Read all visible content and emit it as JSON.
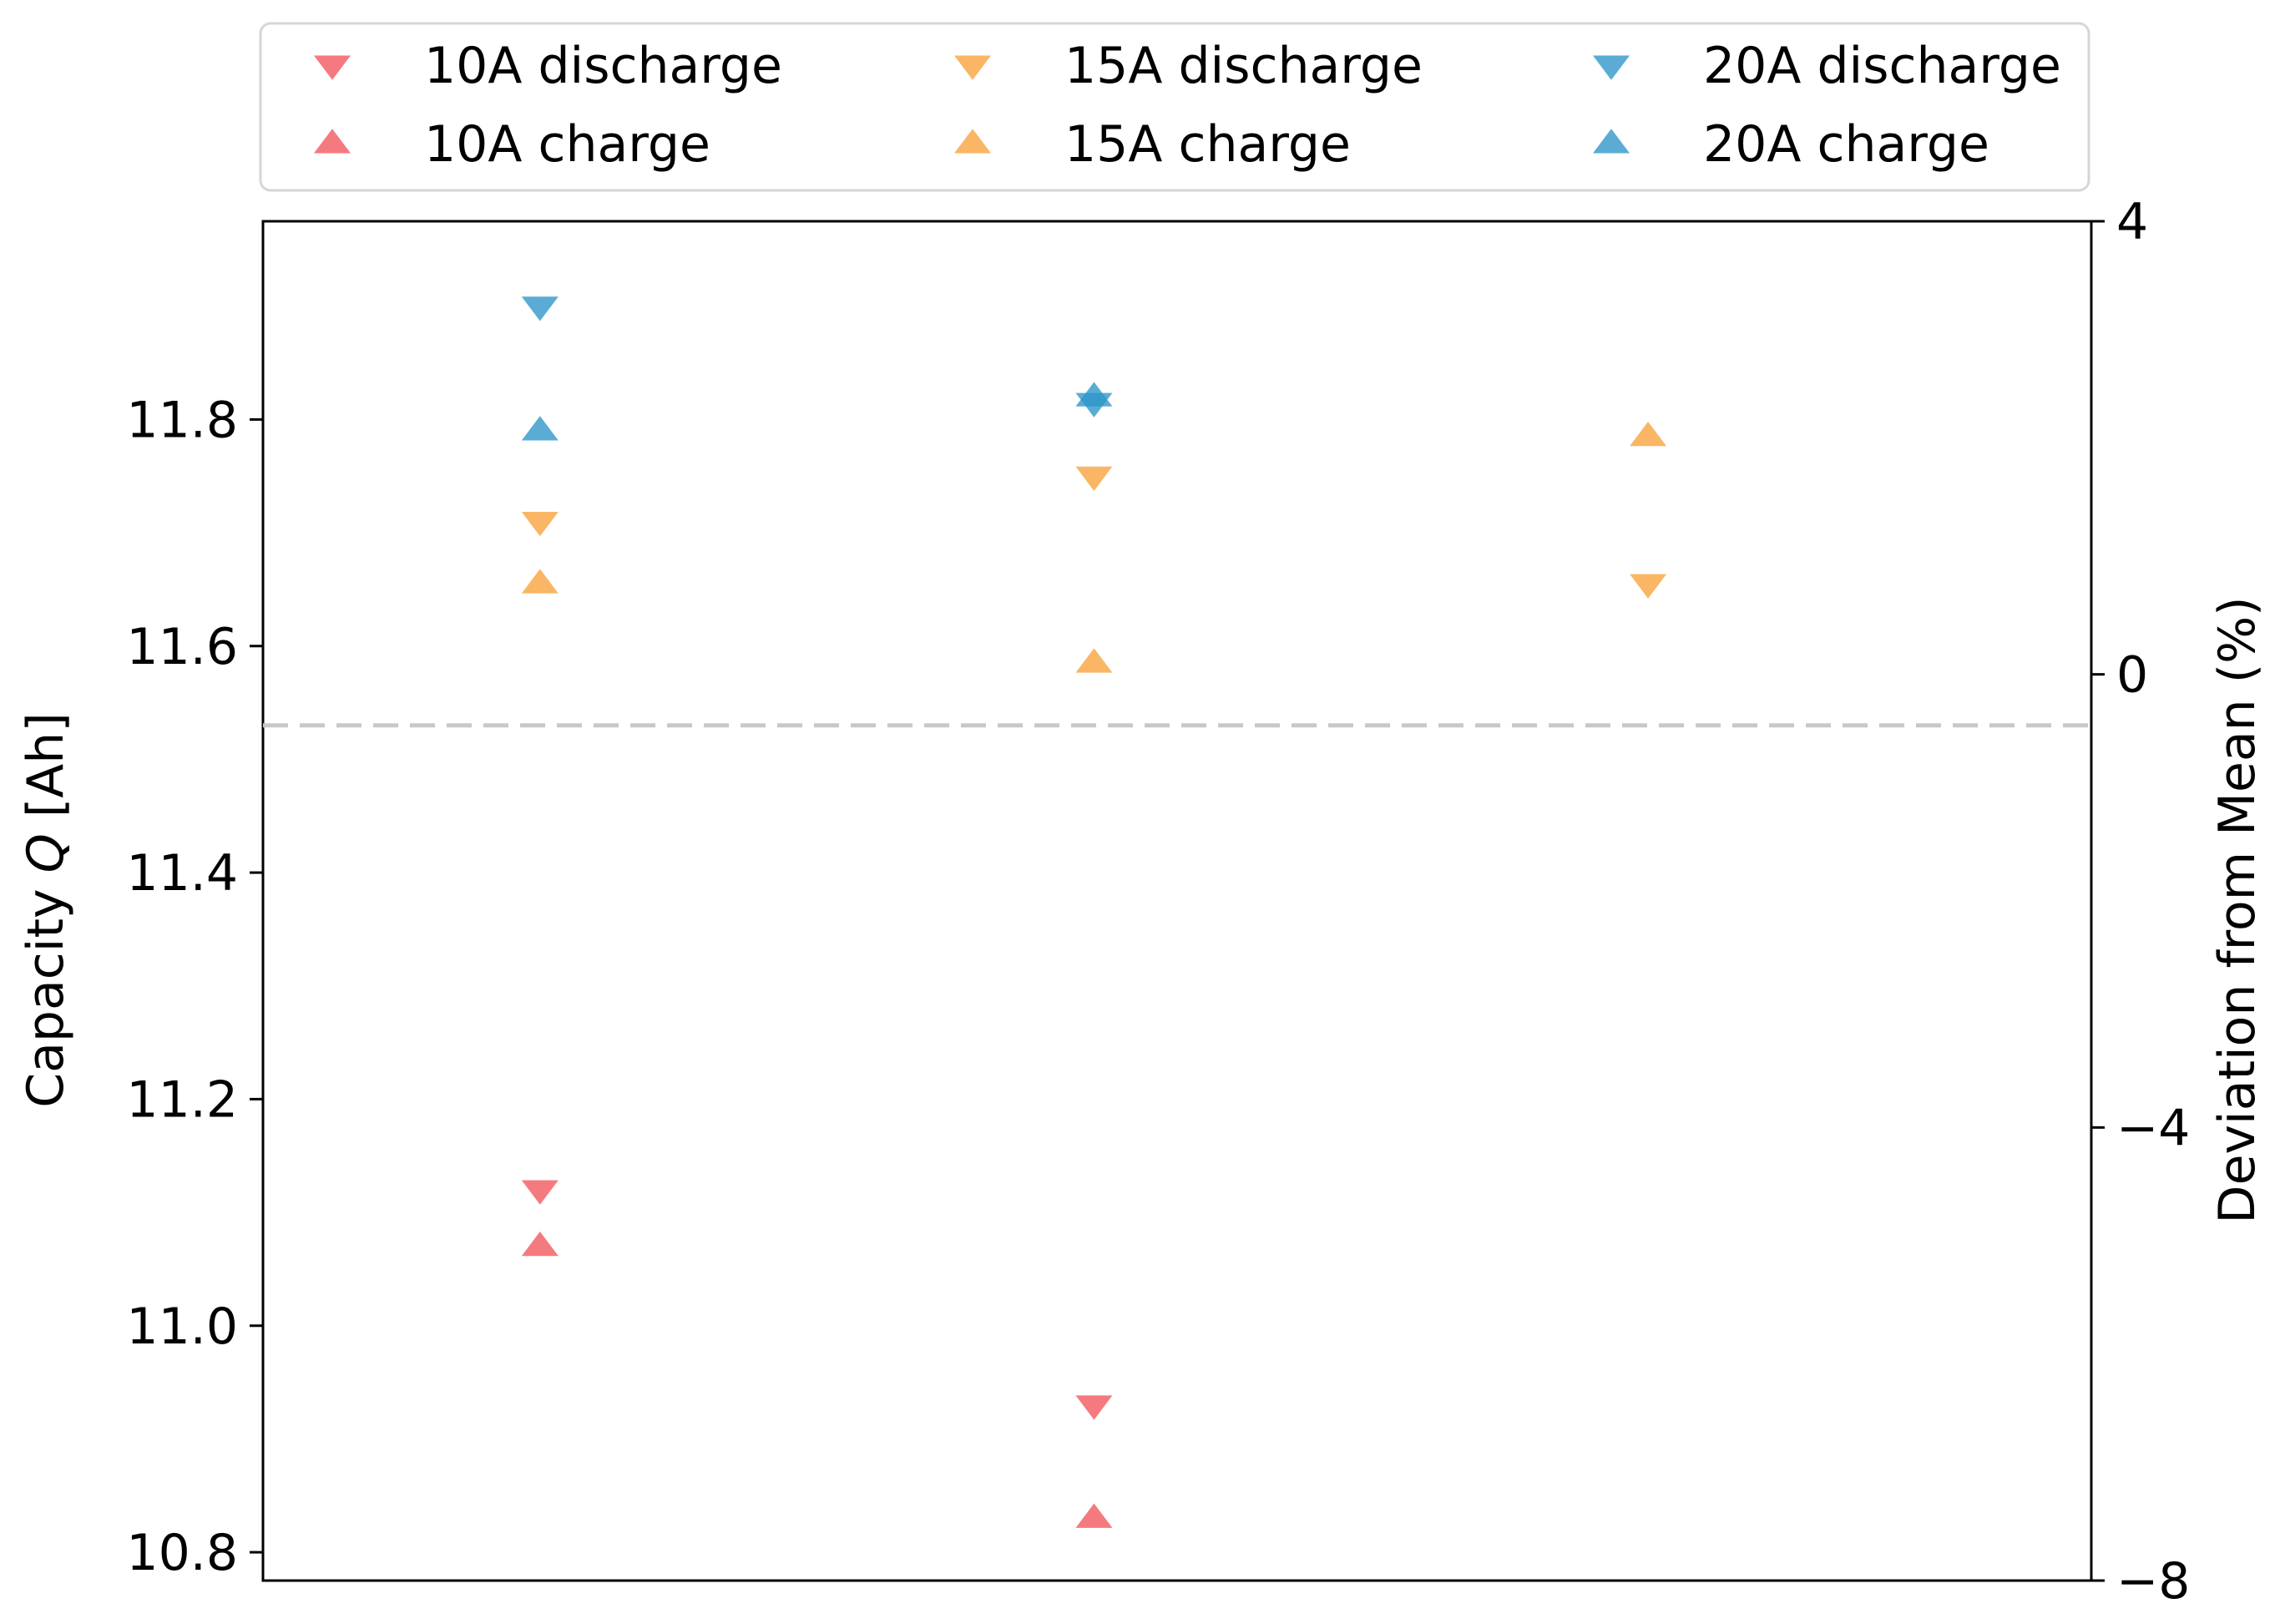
{
  "chart_data": {
    "type": "scatter",
    "title": "",
    "xlabel": "",
    "ylabel_left_prefix": "Capacity ",
    "ylabel_left_var": "Q",
    "ylabel_left_unit": " [Ah]",
    "ylabel_right": "Deviation from Mean (%)",
    "ylim_left": [
      10.775,
      11.975
    ],
    "ylim_right": [
      -8,
      4
    ],
    "yticks_left": [
      "10.8",
      "11.0",
      "11.2",
      "11.4",
      "11.6",
      "11.8"
    ],
    "yticks_left_values": [
      10.8,
      11.0,
      11.2,
      11.4,
      11.6,
      11.8
    ],
    "yticks_right": [
      "−8",
      "−4",
      "0",
      "4"
    ],
    "yticks_right_values": [
      -8,
      -4,
      0,
      4
    ],
    "xlim": [
      0.5,
      3.8
    ],
    "mean_line": {
      "value": 11.53,
      "style": "dashed",
      "color": "#c8c8c8"
    },
    "legend": {
      "placement": "top",
      "columns": 3
    },
    "series": [
      {
        "name": "10A discharge",
        "marker": "triangle-down",
        "color": "#f2545b",
        "points": [
          {
            "x": 1,
            "y": 11.12
          },
          {
            "x": 2,
            "y": 10.93
          }
        ]
      },
      {
        "name": "10A charge",
        "marker": "triangle-up",
        "color": "#f2545b",
        "points": [
          {
            "x": 1,
            "y": 11.07
          },
          {
            "x": 2,
            "y": 10.83
          }
        ]
      },
      {
        "name": "15A discharge",
        "marker": "triangle-down",
        "color": "#f9a23a",
        "points": [
          {
            "x": 1,
            "y": 11.71
          },
          {
            "x": 2,
            "y": 11.75
          },
          {
            "x": 3,
            "y": 11.655
          }
        ]
      },
      {
        "name": "15A charge",
        "marker": "triangle-up",
        "color": "#f9a23a",
        "points": [
          {
            "x": 1,
            "y": 11.655
          },
          {
            "x": 2,
            "y": 11.585
          },
          {
            "x": 3,
            "y": 11.785
          }
        ]
      },
      {
        "name": "20A discharge",
        "marker": "triangle-down",
        "color": "#2b95c8",
        "points": [
          {
            "x": 1,
            "y": 11.9
          },
          {
            "x": 2,
            "y": 11.815
          }
        ]
      },
      {
        "name": "20A charge",
        "marker": "triangle-up",
        "color": "#2b95c8",
        "points": [
          {
            "x": 1,
            "y": 11.79
          },
          {
            "x": 2,
            "y": 11.82
          }
        ]
      }
    ]
  }
}
